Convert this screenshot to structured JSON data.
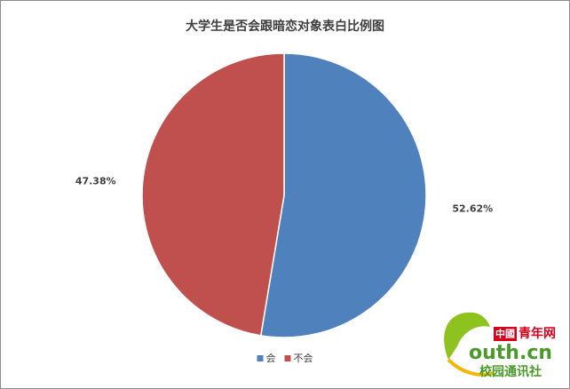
{
  "chart_data": {
    "type": "pie",
    "title": "大学生是否会跟暗恋对象表白比例图",
    "categories": [
      "会",
      "不会"
    ],
    "values": [
      52.62,
      47.38
    ],
    "value_labels": [
      "52.62%",
      "47.38%"
    ],
    "colors": [
      "#4f81bd",
      "#c0504d"
    ],
    "legend": "bottom"
  },
  "watermark": {
    "badge": "中國",
    "brand": "青年网",
    "domain": "outh.cn",
    "caption": "校园通讯社"
  }
}
